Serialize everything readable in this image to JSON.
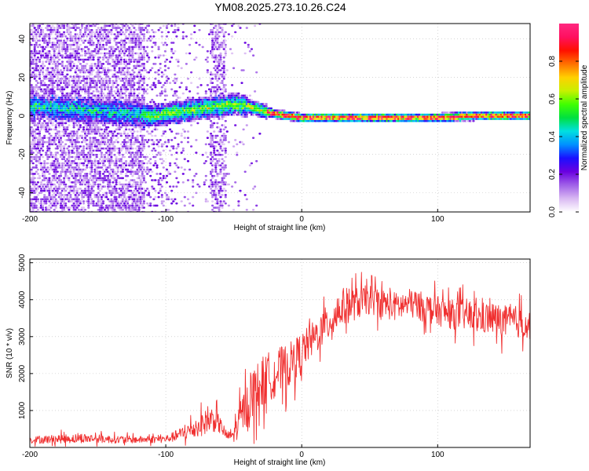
{
  "title": "YM08.2025.273.10.26.C24",
  "chart_data": [
    {
      "type": "heatmap",
      "name": "spectrogram",
      "xlabel": "Height of straight line (km)",
      "ylabel": "Frequency (Hz)",
      "xlim": [
        -200,
        168
      ],
      "ylim": [
        -50,
        48
      ],
      "xticks": [
        -200,
        -100,
        0,
        100
      ],
      "yticks": [
        -40,
        -20,
        0,
        20,
        40
      ],
      "grid": true,
      "colorbar": {
        "label": "Normalized spectral amplitude",
        "range": [
          0.0,
          1.0
        ],
        "ticks": [
          "0.0",
          "0.2",
          "0.4",
          "0.6",
          "0.8"
        ],
        "colormap": [
          "#ffffff",
          "#d9b8f2",
          "#a060e8",
          "#6a00e0",
          "#1a10ff",
          "#0090ff",
          "#00e0e0",
          "#00e040",
          "#40ff00",
          "#c8f000",
          "#ffd000",
          "#ff7000",
          "#ff1000",
          "#ff1060",
          "#ff2880"
        ]
      },
      "ridge": {
        "description": "dominant frequency ridge vs height",
        "x": [
          -200,
          -180,
          -160,
          -140,
          -120,
          -110,
          -100,
          -90,
          -80,
          -70,
          -60,
          -50,
          -40,
          -30,
          -20,
          -10,
          0,
          20,
          50,
          80,
          100,
          130,
          150,
          168
        ],
        "y": [
          5,
          4,
          3,
          2,
          1,
          0,
          1,
          2,
          3,
          4,
          5,
          6,
          5,
          3,
          1,
          0,
          -1,
          -1,
          -1,
          -1,
          -1,
          0,
          0,
          0
        ]
      }
    },
    {
      "type": "line",
      "name": "snr",
      "xlabel": "Height of straight line (km)",
      "ylabel": "SNR (10 * v/v)",
      "xlim": [
        -200,
        168
      ],
      "ylim": [
        0,
        5100
      ],
      "xticks": [
        -200,
        -100,
        0,
        100
      ],
      "yticks": [
        1000,
        2000,
        3000,
        4000,
        5000
      ],
      "grid": true,
      "color": "#f03030",
      "envelope": {
        "x": [
          -200,
          -180,
          -160,
          -140,
          -120,
          -100,
          -95,
          -90,
          -85,
          -80,
          -75,
          -70,
          -65,
          -60,
          -55,
          -50,
          -45,
          -40,
          -35,
          -30,
          -25,
          -20,
          -15,
          -10,
          -5,
          0,
          5,
          10,
          15,
          20,
          25,
          30,
          40,
          50,
          60,
          70,
          80,
          90,
          100,
          110,
          120,
          130,
          140,
          150,
          160,
          168
        ],
        "mean": [
          200,
          230,
          250,
          220,
          210,
          230,
          280,
          350,
          420,
          500,
          600,
          700,
          780,
          600,
          300,
          350,
          800,
          1200,
          1500,
          1700,
          1900,
          2000,
          2100,
          2200,
          2400,
          2600,
          2800,
          3000,
          3200,
          3400,
          3600,
          3800,
          3900,
          4000,
          3900,
          3800,
          3900,
          3800,
          3700,
          3600,
          3600,
          3500,
          3500,
          3400,
          3400,
          3300
        ],
        "amp": [
          120,
          150,
          160,
          130,
          120,
          130,
          160,
          220,
          280,
          330,
          380,
          420,
          450,
          300,
          150,
          300,
          600,
          800,
          900,
          900,
          850,
          800,
          800,
          750,
          700,
          650,
          600,
          600,
          600,
          650,
          650,
          650,
          550,
          500,
          500,
          500,
          500,
          500,
          500,
          500,
          550,
          550,
          550,
          550,
          550,
          500
        ]
      }
    }
  ]
}
